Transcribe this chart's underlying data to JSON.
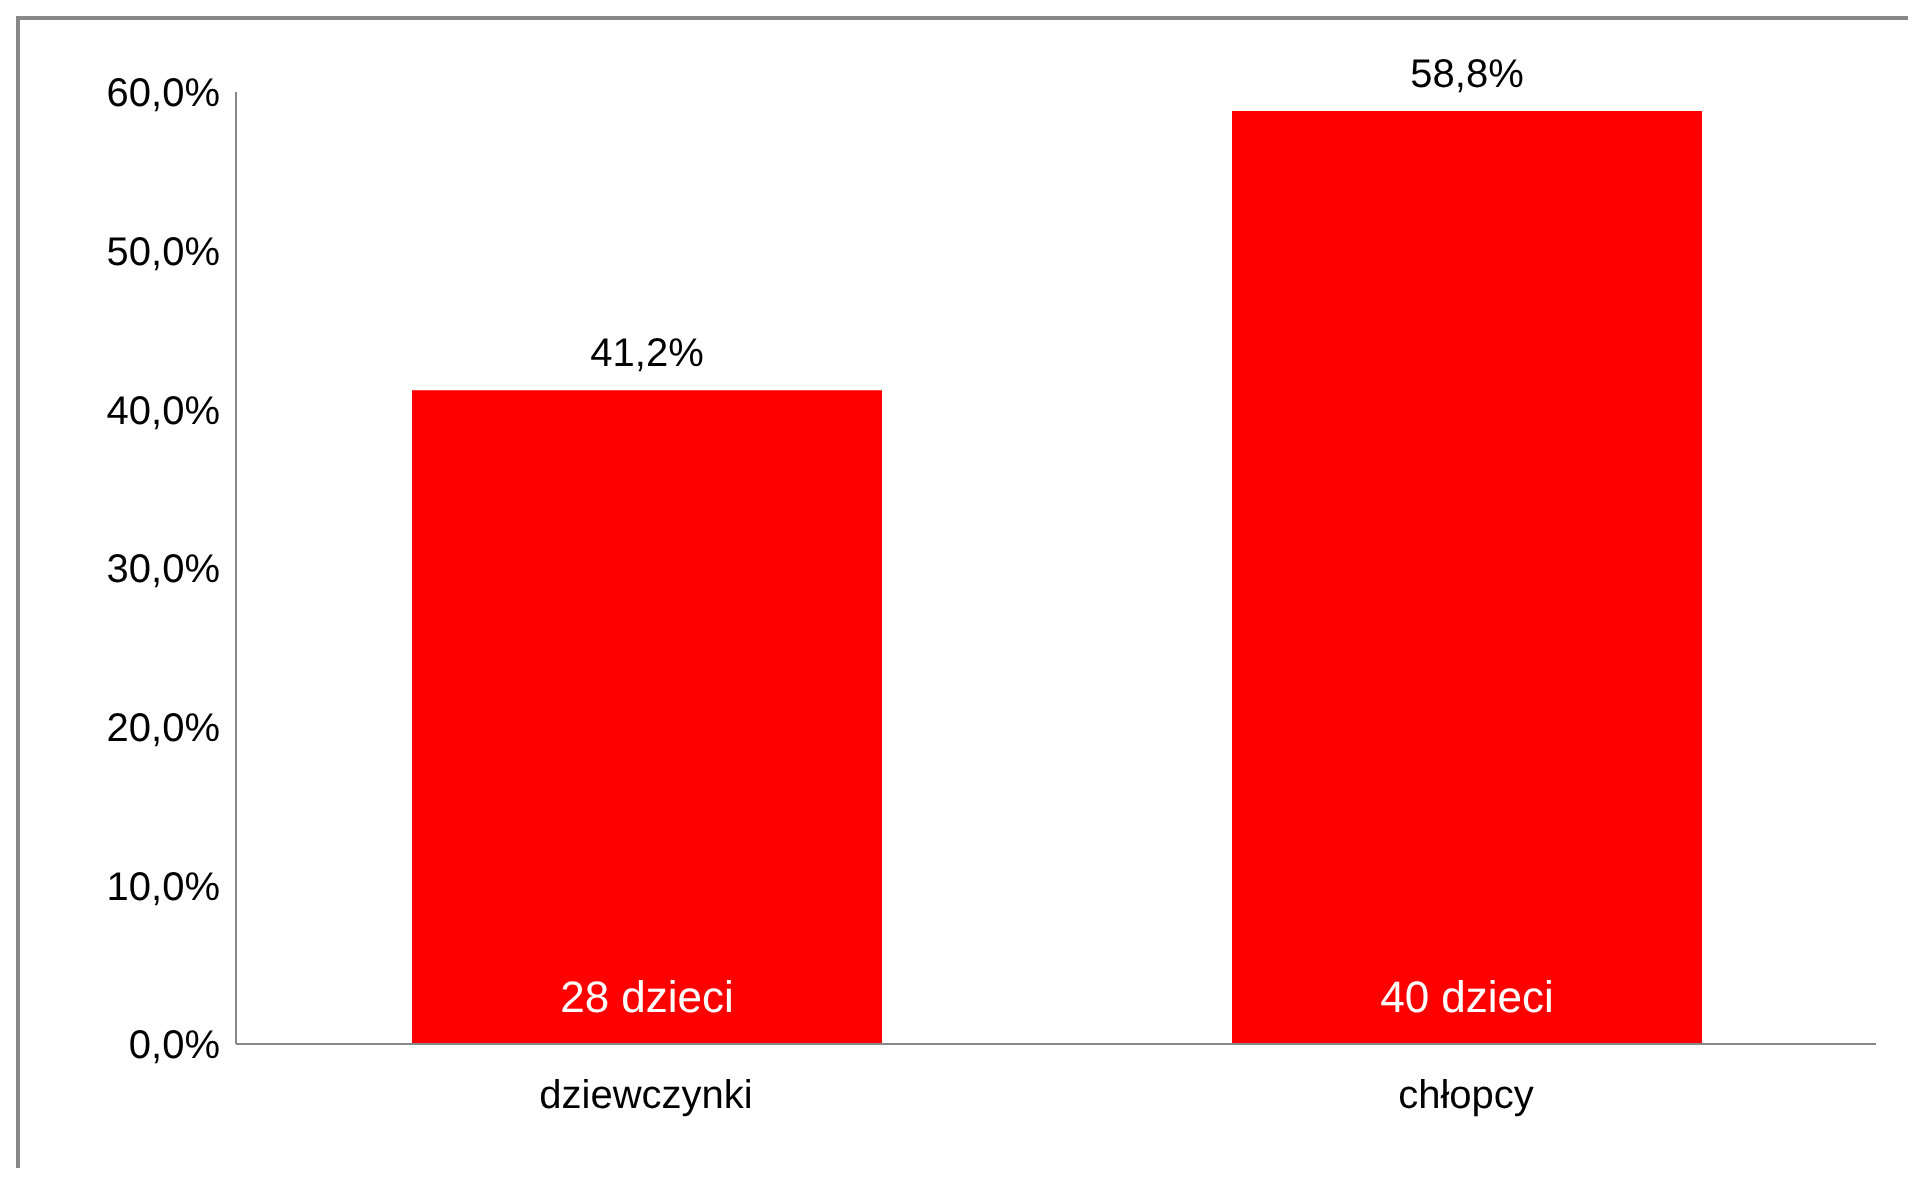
{
  "chart_data": {
    "type": "bar",
    "categories": [
      "dziewczynki",
      "chłopcy"
    ],
    "values": [
      41.2,
      58.8
    ],
    "color": "#ff0000",
    "value_labels": [
      "41,2%",
      "58,8%"
    ],
    "ylim": [
      0,
      60
    ],
    "yticks": [
      {
        "value": 0,
        "label": "0,0%"
      },
      {
        "value": 10,
        "label": "10,0%"
      },
      {
        "value": 20,
        "label": "20,0%"
      },
      {
        "value": 30,
        "label": "30,0%"
      },
      {
        "value": 40,
        "label": "40,0%"
      },
      {
        "value": 50,
        "label": "50,0%"
      },
      {
        "value": 60,
        "label": "60,0%"
      }
    ],
    "annotations": [
      "28 dzieci",
      "40 dzieci"
    ],
    "grid": false,
    "legend": false
  }
}
